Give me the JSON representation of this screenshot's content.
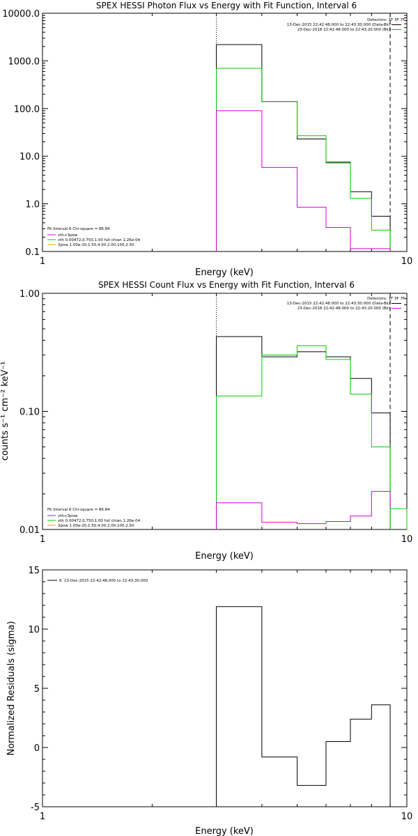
{
  "colors": {
    "total": "#000000",
    "vth_plus_3pow": "#d400d4",
    "vth": "#00cc00",
    "3pow": "#ff9900",
    "residual": "#000000",
    "background": "#ffffff",
    "axes": "#000000"
  },
  "chart_data": [
    {
      "type": "line",
      "step": true,
      "title": "SPEX HESSI Photon Flux vs Energy with Fit Function, Interval 6",
      "xlabel": "Energy (keV)",
      "ylabel": "",
      "xscale": "log",
      "yscale": "log",
      "xlim": [
        1,
        10
      ],
      "ylim": [
        0.1,
        10000
      ],
      "xticks": [
        "1",
        "10"
      ],
      "yticks": [
        "0.1",
        "1.0",
        "10.0",
        "100.0",
        "1000.0",
        "10000.0"
      ],
      "energy_edges": [
        3,
        4,
        5,
        6,
        7,
        8,
        9
      ],
      "header_notes": [
        "Detectors: 1F 3F 7F",
        "13-Dec-2015 22:42:48.000 to 22:43:30.000 (Data-Bk)",
        "23-Dec-2018 22:42:48.000 to 22:43:20.000 (Bk)"
      ],
      "legend_notes": [
        "Fit Interval 6   Chi-square = 86.84",
        "vth+3pow",
        "vth 0.00472,0.750,1.00  full chian 1.26e-04",
        "3pow 1.00e-20,1.50,4.00,2.00,100,2.50"
      ],
      "series": [
        {
          "key": "data",
          "color_key": "total",
          "values": [
            2200,
            140,
            23,
            7.5,
            1.8,
            0.55
          ]
        },
        {
          "key": "vth",
          "color_key": "vth",
          "values": [
            700,
            140,
            27,
            7.2,
            1.3,
            0.28
          ]
        },
        {
          "key": "vth+3pow",
          "color_key": "vth_plus_3pow",
          "values": [
            90,
            5.8,
            0.85,
            0.32,
            0.115,
            0.115
          ]
        }
      ],
      "markers": {
        "dotted_x": 3,
        "dashed_x": 9
      },
      "grid": false
    },
    {
      "type": "line",
      "step": true,
      "title": "SPEX HESSI Count Flux vs Energy with Fit Function, Interval 6",
      "xlabel": "Energy (keV)",
      "ylabel": "counts s⁻¹ cm⁻² keV⁻¹",
      "xscale": "log",
      "yscale": "log",
      "xlim": [
        1,
        10
      ],
      "ylim": [
        0.01,
        1.0
      ],
      "xticks": [
        "1",
        "10"
      ],
      "yticks": [
        "0.01",
        "0.10",
        "1.00"
      ],
      "energy_edges": [
        3,
        4,
        5,
        6,
        7,
        8,
        9
      ],
      "header_notes": [
        "Detectors: 1F 3F 7F",
        "13-Dec-2015 22:42:48.000 to 22:43:30.000 (Data-Bk)",
        "23-Dec-2018 22:42:48.000 to 22:43:20.000 (Bk)"
      ],
      "legend_notes": [
        "Fit Interval 6   Chi-square = 86.84",
        "vth+3pow",
        "vth 0.00472,0.750,1.00  full chian 1.26e-04",
        "3pow 1.00e-20,1.50,4.00,2.00,100,2.50"
      ],
      "series": [
        {
          "key": "data",
          "color_key": "total",
          "values": [
            0.43,
            0.29,
            0.32,
            0.29,
            0.19,
            0.097
          ]
        },
        {
          "key": "vth",
          "color_key": "vth",
          "values": [
            0.135,
            0.3,
            0.36,
            0.275,
            0.14,
            0.05
          ]
        },
        {
          "key": "vth+3pow",
          "color_key": "vth_plus_3pow",
          "values": [
            0.0168,
            0.0115,
            0.0112,
            0.0117,
            0.013,
            0.021
          ]
        },
        {
          "key": "tail",
          "color_key": "vth",
          "values": [
            0.015
          ],
          "edges": [
            9,
            10
          ]
        }
      ],
      "markers": {
        "dotted_x": 3,
        "dashed_x": 9
      },
      "grid": false
    },
    {
      "type": "line",
      "step": true,
      "title": "",
      "xlabel": "Energy (keV)",
      "ylabel": "Normalized Residuals (sigma)",
      "xscale": "log",
      "yscale": "linear",
      "xlim": [
        1,
        10
      ],
      "ylim": [
        -5,
        15
      ],
      "xticks": [
        "1",
        "10"
      ],
      "yticks": [
        "-5",
        "0",
        "5",
        "10",
        "15"
      ],
      "energy_edges": [
        3,
        4,
        5,
        6,
        7,
        8,
        9
      ],
      "legend_notes": [
        "6. 13-Dec-2015 22:42:48.000 to 22:43:30.000"
      ],
      "series": [
        {
          "key": "residuals",
          "color_key": "residual",
          "values": [
            11.9,
            -0.8,
            -3.2,
            0.5,
            2.4,
            3.6
          ]
        }
      ],
      "grid": false
    }
  ]
}
